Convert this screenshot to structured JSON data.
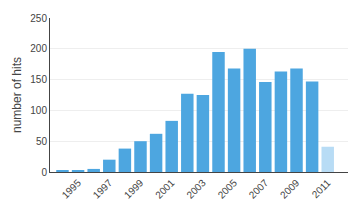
{
  "chart_data": {
    "type": "bar",
    "x": [
      1994,
      1995,
      1996,
      1997,
      1998,
      1999,
      2000,
      2001,
      2002,
      2003,
      2004,
      2005,
      2006,
      2007,
      2008,
      2009,
      2010,
      2011
    ],
    "values": [
      2,
      3,
      5,
      20,
      38,
      50,
      62,
      83,
      127,
      125,
      195,
      168,
      200,
      146,
      163,
      168,
      147,
      41
    ],
    "colors": [
      "#4DA6E0",
      "#4DA6E0",
      "#4DA6E0",
      "#4DA6E0",
      "#4DA6E0",
      "#4DA6E0",
      "#4DA6E0",
      "#4DA6E0",
      "#4DA6E0",
      "#4DA6E0",
      "#4DA6E0",
      "#4DA6E0",
      "#4DA6E0",
      "#4DA6E0",
      "#4DA6E0",
      "#4DA6E0",
      "#4DA6E0",
      "#B8DCF5"
    ],
    "ylabel": "number of hits",
    "xlim": [
      1993.2,
      2012.3
    ],
    "xticks": [
      1995,
      1997,
      1999,
      2001,
      2003,
      2005,
      2007,
      2009,
      2011
    ],
    "ylim": [
      0,
      250
    ],
    "yticks": [
      0,
      50,
      100,
      150,
      200,
      250
    ],
    "grid": true
  }
}
